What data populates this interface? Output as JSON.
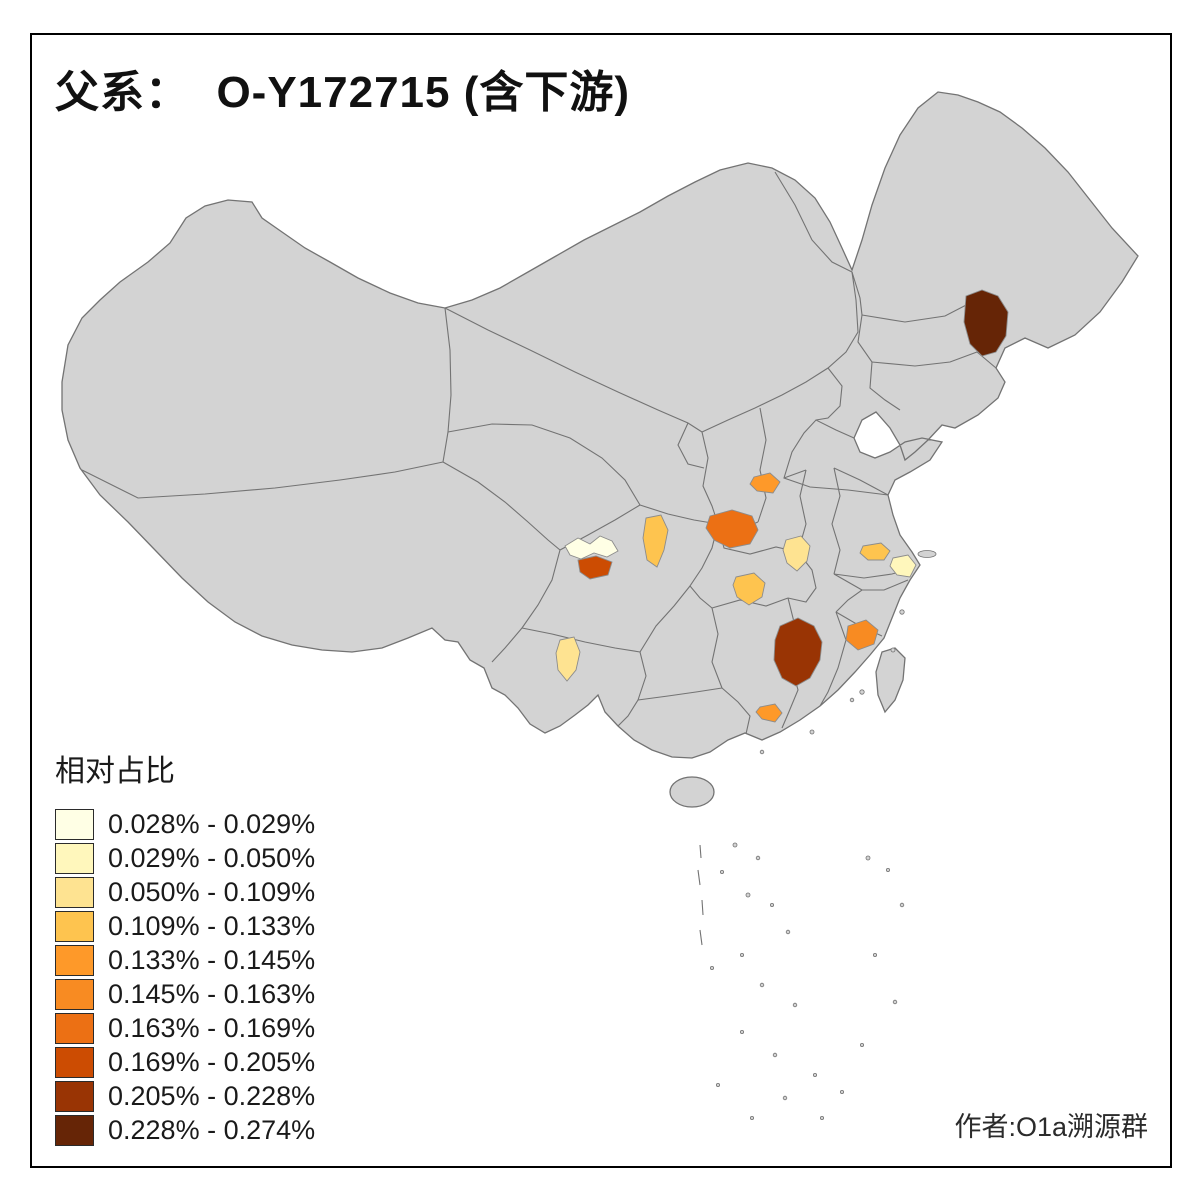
{
  "title": "父系：  O-Y172715 (含下游)",
  "legend": {
    "title": "相对占比",
    "entries": [
      {
        "range": "0.028% - 0.029%",
        "color": "#FFFFE5"
      },
      {
        "range": "0.029% - 0.050%",
        "color": "#FFF7BC"
      },
      {
        "range": "0.050% - 0.109%",
        "color": "#FEE391"
      },
      {
        "range": "0.109% - 0.133%",
        "color": "#FEC44F"
      },
      {
        "range": "0.133% - 0.145%",
        "color": "#FE9929"
      },
      {
        "range": "0.145% - 0.163%",
        "color": "#F88B22"
      },
      {
        "range": "0.163% - 0.169%",
        "color": "#EC7014"
      },
      {
        "range": "0.169% - 0.205%",
        "color": "#CC4C02"
      },
      {
        "range": "0.205% - 0.228%",
        "color": "#993404"
      },
      {
        "range": "0.228% - 0.274%",
        "color": "#662506"
      }
    ]
  },
  "attribution": "作者:O1a溯源群",
  "map": {
    "colors": {
      "land": "#d3d3d3",
      "border": "#737373",
      "region_stroke": "#8c8c8c",
      "background": "#ffffff",
      "frame": "#000000"
    },
    "regions": [
      {
        "id": "northeast-jilin",
        "color": "#662506",
        "range": "0.228% - 0.274%"
      },
      {
        "id": "jiangxi",
        "color": "#993404",
        "range": "0.205% - 0.228%"
      },
      {
        "id": "sichuan-south",
        "color": "#CC4C02",
        "range": "0.169% - 0.205%"
      },
      {
        "id": "hubei-north",
        "color": "#EC7014",
        "range": "0.163% - 0.169%"
      },
      {
        "id": "fujian-coast",
        "color": "#F88B22",
        "range": "0.145% - 0.163%"
      },
      {
        "id": "henan-south",
        "color": "#FE9929",
        "range": "0.133% - 0.145%"
      },
      {
        "id": "guangdong-delta",
        "color": "#FE9929",
        "range": "0.133% - 0.145%"
      },
      {
        "id": "gansu-south",
        "color": "#FEC44F",
        "range": "0.109% - 0.133%"
      },
      {
        "id": "hubei-southwest",
        "color": "#FEC44F",
        "range": "0.109% - 0.133%"
      },
      {
        "id": "jiangsu-south",
        "color": "#FEC44F",
        "range": "0.109% - 0.133%"
      },
      {
        "id": "anhui-west",
        "color": "#FEE391",
        "range": "0.050% - 0.109%"
      },
      {
        "id": "yunnan-central",
        "color": "#FEE391",
        "range": "0.050% - 0.109%"
      },
      {
        "id": "shanghai-area",
        "color": "#FFF7BC",
        "range": "0.029% - 0.050%"
      },
      {
        "id": "sichuan-central",
        "color": "#FFFFE5",
        "range": "0.028% - 0.029%"
      }
    ]
  }
}
